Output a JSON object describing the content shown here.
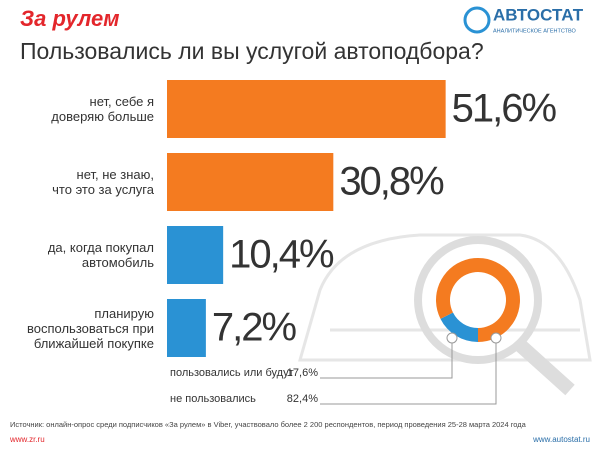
{
  "header": {
    "brand": "За рулем",
    "logo": "АВТОСТАТ",
    "logo_subtitle": "АНАЛИТИЧЕСКОЕ АГЕНТСТВО"
  },
  "chart_data": [
    {
      "type": "bar",
      "title": "Пользовались ли вы услугой автоподбора?",
      "categories": [
        "нет, себе я\nдоверяю больше",
        "нет, не знаю,\nчто это за услуга",
        "да, когда покупал\nавтомобиль",
        "планирую\nвоспользоваться при\nближайшей покупке"
      ],
      "values": [
        51.6,
        30.8,
        10.4,
        7.2
      ],
      "value_labels": [
        "51,6%",
        "30,8%",
        "10,4%",
        "7,2%"
      ],
      "colors": [
        "#f47b20",
        "#f47b20",
        "#2a92d4",
        "#2a92d4"
      ]
    },
    {
      "type": "donut",
      "categories": [
        "пользовались или будут",
        "не пользовались"
      ],
      "values": [
        17.6,
        82.4
      ],
      "value_labels": [
        "17,6%",
        "82,4%"
      ],
      "colors": [
        "#2a92d4",
        "#f47b20"
      ]
    }
  ],
  "footer": {
    "source": "Источник: онлайн-опрос среди подписчиков «За рулем» в Viber, участвовало более 2 200 респондентов, период проведения 25-28 марта 2024 года",
    "left_url": "www.zr.ru",
    "right_url": "www.autostat.ru"
  }
}
